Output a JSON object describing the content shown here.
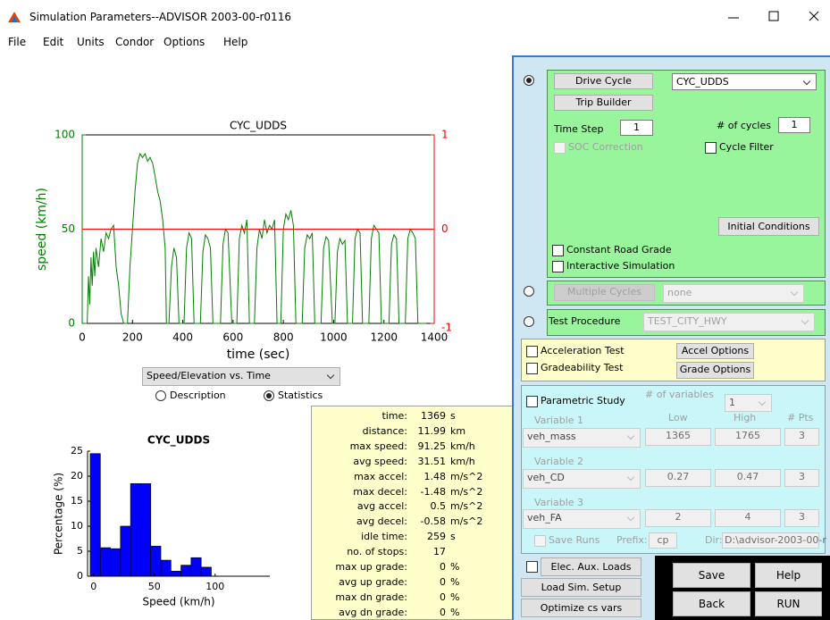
{
  "window": {
    "title": "Simulation Parameters--ADVISOR 2003-00-r0116"
  },
  "menu": [
    "File",
    "Edit",
    "Units",
    "Condor",
    "Options",
    "Help"
  ],
  "chart_data": [
    {
      "type": "line",
      "title": "CYC_UDDS",
      "xlabel": "time (sec)",
      "ylabel": "speed (km/h)",
      "xlim": [
        0,
        1400
      ],
      "xticks": [
        0,
        200,
        400,
        600,
        800,
        1000,
        1200,
        1400
      ],
      "ylim": [
        0,
        100
      ],
      "yticks": [
        0,
        50,
        100
      ],
      "y2lim": [
        -1,
        1
      ],
      "y2ticks": [
        -1,
        0,
        1
      ],
      "series": [
        {
          "color": "#008000",
          "x": [
            0,
            20,
            25,
            30,
            35,
            40,
            45,
            50,
            55,
            65,
            75,
            85,
            95,
            105,
            115,
            125,
            135,
            145,
            155,
            165,
            180,
            190,
            200,
            210,
            220,
            230,
            240,
            250,
            260,
            270,
            280,
            290,
            300,
            310,
            320,
            330,
            335,
            345,
            355,
            365,
            375,
            385,
            405,
            415,
            425,
            435,
            445,
            470,
            480,
            490,
            500,
            510,
            520,
            550,
            560,
            570,
            580,
            595,
            615,
            625,
            635,
            645,
            655,
            665,
            685,
            695,
            705,
            715,
            725,
            735,
            745,
            755,
            765,
            775,
            790,
            800,
            810,
            820,
            830,
            840,
            850,
            875,
            885,
            895,
            905,
            915,
            925,
            950,
            960,
            970,
            980,
            995,
            1005,
            1015,
            1025,
            1035,
            1045,
            1055,
            1075,
            1085,
            1095,
            1105,
            1115,
            1140,
            1150,
            1160,
            1170,
            1180,
            1190,
            1220,
            1230,
            1240,
            1250,
            1260,
            1285,
            1295,
            1305,
            1315,
            1325,
            1335,
            1369
          ],
          "values": [
            0,
            0,
            25,
            10,
            35,
            20,
            38,
            25,
            40,
            30,
            45,
            38,
            48,
            45,
            50,
            52,
            30,
            20,
            5,
            0,
            0,
            30,
            50,
            70,
            85,
            90,
            88,
            90,
            86,
            88,
            85,
            78,
            70,
            65,
            55,
            40,
            0,
            0,
            30,
            40,
            35,
            0,
            0,
            40,
            48,
            45,
            0,
            0,
            38,
            47,
            45,
            40,
            0,
            0,
            42,
            50,
            48,
            0,
            0,
            45,
            52,
            48,
            55,
            0,
            0,
            40,
            50,
            45,
            55,
            48,
            52,
            50,
            55,
            0,
            0,
            50,
            58,
            55,
            60,
            52,
            0,
            0,
            40,
            47,
            45,
            48,
            0,
            0,
            40,
            46,
            44,
            0,
            0,
            38,
            45,
            42,
            44,
            0,
            0,
            45,
            50,
            48,
            0,
            0,
            45,
            52,
            50,
            48,
            0,
            0,
            42,
            47,
            45,
            0,
            0,
            45,
            50,
            48,
            45,
            0,
            0
          ]
        },
        {
          "color": "#ff0000",
          "axis": "y2",
          "x": [
            0,
            1400
          ],
          "values": [
            0,
            0
          ]
        }
      ]
    },
    {
      "type": "histogram",
      "title": "CYC_UDDS",
      "xlabel": "Speed (km/h)",
      "ylabel": "Percentage (%)",
      "color": "#0000ff",
      "bins": [
        -2.8,
        5.5,
        13.8,
        22.1,
        30.4,
        38.7,
        47,
        55.3,
        63.6,
        71.9,
        80.2,
        88.5,
        96.8
      ],
      "values": [
        24.5,
        5.7,
        5.5,
        10,
        18.5,
        18.5,
        6,
        3.2,
        1,
        2.2,
        3.7,
        1.8
      ],
      "xlim": [
        -5,
        145
      ],
      "xticks": [
        0,
        50,
        100
      ],
      "ylim": [
        0,
        25
      ],
      "yticks": [
        0,
        5,
        10,
        15,
        20,
        25
      ]
    }
  ],
  "plot_selector": "Speed/Elevation vs. Time",
  "view_options": [
    "Description",
    "Statistics"
  ],
  "statistics": {
    "rows": [
      [
        "time:",
        "1369",
        "s"
      ],
      [
        "distance:",
        "11.99",
        "km"
      ],
      [
        "max speed:",
        "91.25",
        "km/h"
      ],
      [
        "avg speed:",
        "31.51",
        "km/h"
      ],
      [
        "max accel:",
        "1.48",
        "m/s^2"
      ],
      [
        "max decel:",
        "-1.48",
        "m/s^2"
      ],
      [
        "avg accel:",
        "0.5",
        "m/s^2"
      ],
      [
        "avg decel:",
        "-0.58",
        "m/s^2"
      ],
      [
        "idle time:",
        "259",
        "s"
      ],
      [
        "no. of stops:",
        "17"
      ],
      [
        "max up grade:",
        "0",
        "%"
      ],
      [
        "avg up grade:",
        "0",
        "%"
      ],
      [
        "max dn grade:",
        "0",
        "%"
      ],
      [
        "avg dn grade:",
        "0",
        "%"
      ]
    ]
  },
  "drive_cycle": {
    "button": "Drive Cycle",
    "trip_builder": "Trip Builder",
    "cycle": "CYC_UDDS",
    "time_step_label": "Time Step",
    "time_step": "1",
    "cycles_label": "# of cycles",
    "cycles": "1",
    "soc_correction": "SOC Correction",
    "cycle_filter": "Cycle Filter",
    "initial_conditions": "Initial Conditions",
    "constant_road_grade": "Constant Road Grade",
    "interactive_simulation": "Interactive Simulation"
  },
  "multiple_cycles": {
    "button": "Multiple Cycles",
    "selection": "none"
  },
  "test_procedure": {
    "label": "Test Procedure",
    "selection": "TEST_CITY_HWY"
  },
  "tests": {
    "acceleration": "Acceleration Test",
    "accel_options": "Accel Options",
    "gradeability": "Gradeability Test",
    "grade_options": "Grade Options"
  },
  "parametric": {
    "label": "Parametric Study",
    "num_variables_label": "# of variables",
    "num_variables": "1",
    "headers": [
      "Low",
      "High",
      "# Pts"
    ],
    "variables": [
      {
        "label": "Variable 1",
        "name": "veh_mass",
        "low": "1365",
        "high": "1765",
        "points": "3"
      },
      {
        "label": "Variable 2",
        "name": "veh_CD",
        "low": "0.27",
        "high": "0.47",
        "points": "3"
      },
      {
        "label": "Variable 3",
        "name": "veh_FA",
        "low": "2",
        "high": "4",
        "points": "3"
      }
    ],
    "save_runs": "Save Runs",
    "prefix_label": "Prefix:",
    "prefix": "cp",
    "dir_label": "Dir:",
    "dir": "D:\\advisor-2003-00-r"
  },
  "actions": {
    "elec_aux_loads": "Elec. Aux. Loads",
    "load_sim_setup": "Load Sim. Setup",
    "optimize": "Optimize cs vars",
    "save": "Save",
    "help": "Help",
    "back": "Back",
    "run": "RUN"
  }
}
